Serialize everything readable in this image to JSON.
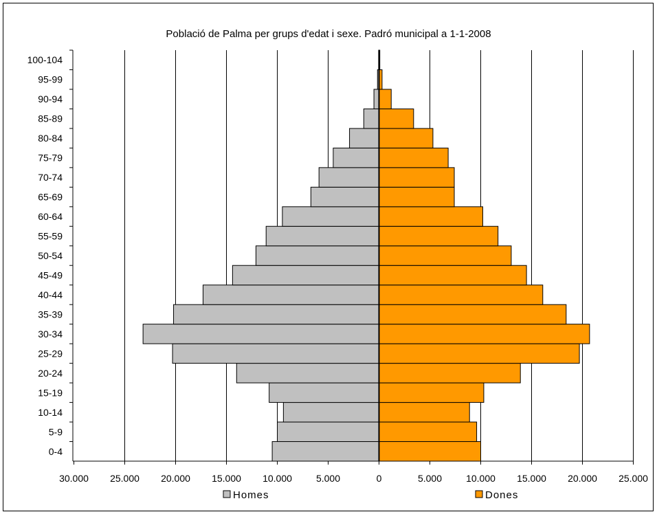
{
  "chart_data": {
    "type": "bar",
    "orientation": "horizontal-population-pyramid",
    "title": "Població de Palma per grups d'edat i sexe. Padró municipal a 1-1-2008",
    "categories": [
      "0-4",
      "5-9",
      "10-14",
      "15-19",
      "20-24",
      "25-29",
      "30-34",
      "35-39",
      "40-44",
      "45-49",
      "50-54",
      "55-59",
      "60-64",
      "65-69",
      "70-74",
      "75-79",
      "80-84",
      "85-89",
      "90-94",
      "95-99",
      "100-104"
    ],
    "series": [
      {
        "name": "Homes",
        "color": "#c0c0c0",
        "side": "left",
        "values": [
          10500,
          10000,
          9400,
          10800,
          14000,
          20300,
          23200,
          20200,
          17300,
          14400,
          12100,
          11100,
          9500,
          6700,
          5900,
          4500,
          2900,
          1500,
          500,
          150,
          40
        ]
      },
      {
        "name": "Dones",
        "color": "#ff9900",
        "side": "right",
        "values": [
          10000,
          9600,
          8900,
          10300,
          13900,
          19700,
          20700,
          18400,
          16100,
          14500,
          13000,
          11700,
          10200,
          7400,
          7400,
          6800,
          5300,
          3400,
          1200,
          300,
          80
        ]
      }
    ],
    "xlim": [
      -25000,
      25000
    ],
    "x_tick_labels": [
      "30.000",
      "25.000",
      "20.000",
      "15.000",
      "10.000",
      "5.000",
      "0",
      "5.000",
      "10.000",
      "15.000",
      "20.000",
      "25.000"
    ],
    "grid": "vertical",
    "legend": "bottom"
  }
}
